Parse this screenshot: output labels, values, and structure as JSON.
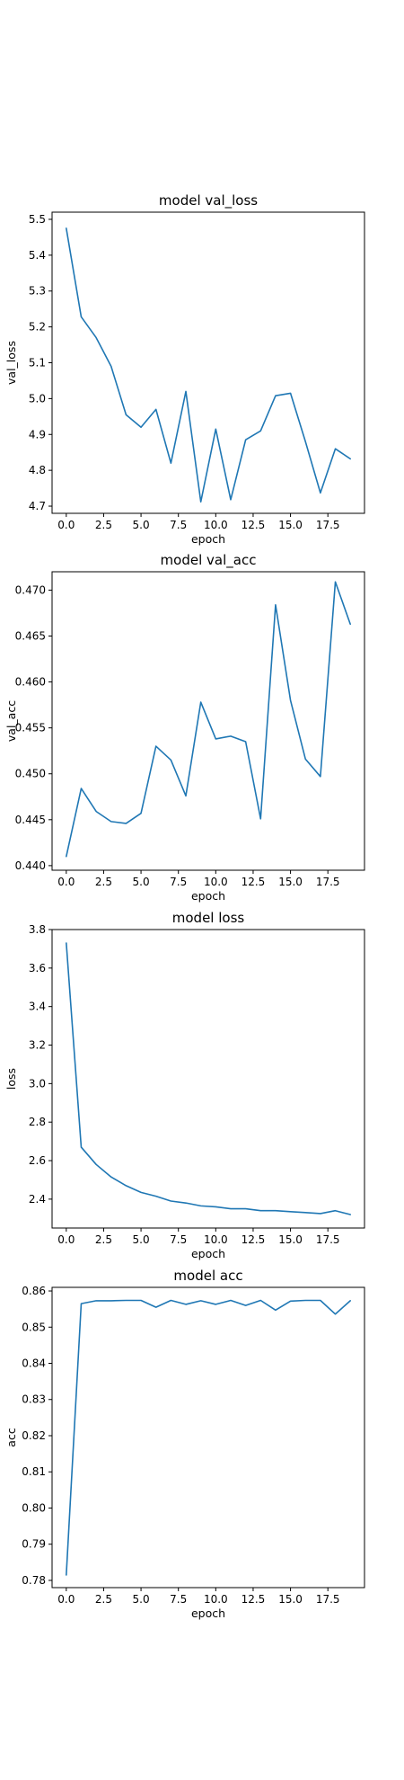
{
  "chart_data": [
    {
      "type": "line",
      "title": "model val_loss",
      "xlabel": "epoch",
      "ylabel": "val_loss",
      "xlim": [
        -0.95,
        19.95
      ],
      "ylim": [
        4.68,
        5.52
      ],
      "xticks": [
        0.0,
        2.5,
        5.0,
        7.5,
        10.0,
        12.5,
        15.0,
        17.5
      ],
      "xtick_labels": [
        "0.0",
        "2.5",
        "5.0",
        "7.5",
        "10.0",
        "12.5",
        "15.0",
        "17.5"
      ],
      "yticks": [
        4.7,
        4.8,
        4.9,
        5.0,
        5.1,
        5.2,
        5.3,
        5.4,
        5.5
      ],
      "ytick_labels": [
        "4.7",
        "4.8",
        "4.9",
        "5.0",
        "5.1",
        "5.2",
        "5.3",
        "5.4",
        "5.5"
      ],
      "grid": false,
      "x": [
        0,
        1,
        2,
        3,
        4,
        5,
        6,
        7,
        8,
        9,
        10,
        11,
        12,
        13,
        14,
        15,
        16,
        17,
        18,
        19
      ],
      "series": [
        {
          "values": [
            5.475,
            5.228,
            5.17,
            5.09,
            4.955,
            4.92,
            4.97,
            4.82,
            5.02,
            4.712,
            4.915,
            4.718,
            4.885,
            4.91,
            5.008,
            5.015,
            4.88,
            4.737,
            4.86,
            4.832
          ],
          "color": "#1f77b4"
        }
      ]
    },
    {
      "type": "line",
      "title": "model val_acc",
      "xlabel": "epoch",
      "ylabel": "val_acc",
      "xlim": [
        -0.95,
        19.95
      ],
      "ylim": [
        0.4395,
        0.472
      ],
      "xticks": [
        0.0,
        2.5,
        5.0,
        7.5,
        10.0,
        12.5,
        15.0,
        17.5
      ],
      "xtick_labels": [
        "0.0",
        "2.5",
        "5.0",
        "7.5",
        "10.0",
        "12.5",
        "15.0",
        "17.5"
      ],
      "yticks": [
        0.44,
        0.445,
        0.45,
        0.455,
        0.46,
        0.465,
        0.47
      ],
      "ytick_labels": [
        "0.440",
        "0.445",
        "0.450",
        "0.455",
        "0.460",
        "0.465",
        "0.470"
      ],
      "grid": false,
      "x": [
        0,
        1,
        2,
        3,
        4,
        5,
        6,
        7,
        8,
        9,
        10,
        11,
        12,
        13,
        14,
        15,
        16,
        17,
        18,
        19
      ],
      "series": [
        {
          "values": [
            0.441,
            0.4484,
            0.4459,
            0.4448,
            0.4446,
            0.4457,
            0.453,
            0.4515,
            0.4476,
            0.4578,
            0.4538,
            0.4541,
            0.4535,
            0.4451,
            0.4684,
            0.458,
            0.4516,
            0.4497,
            0.4709,
            0.4663
          ],
          "color": "#1f77b4"
        }
      ]
    },
    {
      "type": "line",
      "title": "model loss",
      "xlabel": "epoch",
      "ylabel": "loss",
      "xlim": [
        -0.95,
        19.95
      ],
      "ylim": [
        2.25,
        3.8
      ],
      "xticks": [
        0.0,
        2.5,
        5.0,
        7.5,
        10.0,
        12.5,
        15.0,
        17.5
      ],
      "xtick_labels": [
        "0.0",
        "2.5",
        "5.0",
        "7.5",
        "10.0",
        "12.5",
        "15.0",
        "17.5"
      ],
      "yticks": [
        2.4,
        2.6,
        2.8,
        3.0,
        3.2,
        3.4,
        3.6,
        3.8
      ],
      "ytick_labels": [
        "2.4",
        "2.6",
        "2.8",
        "3.0",
        "3.2",
        "3.4",
        "3.6",
        "3.8"
      ],
      "grid": false,
      "x": [
        0,
        1,
        2,
        3,
        4,
        5,
        6,
        7,
        8,
        9,
        10,
        11,
        12,
        13,
        14,
        15,
        16,
        17,
        18,
        19
      ],
      "series": [
        {
          "values": [
            3.73,
            2.67,
            2.58,
            2.515,
            2.47,
            2.435,
            2.415,
            2.39,
            2.38,
            2.365,
            2.36,
            2.35,
            2.35,
            2.34,
            2.34,
            2.335,
            2.33,
            2.325,
            2.34,
            2.32
          ],
          "color": "#1f77b4"
        }
      ]
    },
    {
      "type": "line",
      "title": "model acc",
      "xlabel": "epoch",
      "ylabel": "acc",
      "xlim": [
        -0.95,
        19.95
      ],
      "ylim": [
        0.778,
        0.861
      ],
      "xticks": [
        0.0,
        2.5,
        5.0,
        7.5,
        10.0,
        12.5,
        15.0,
        17.5
      ],
      "xtick_labels": [
        "0.0",
        "2.5",
        "5.0",
        "7.5",
        "10.0",
        "12.5",
        "15.0",
        "17.5"
      ],
      "yticks": [
        0.78,
        0.79,
        0.8,
        0.81,
        0.82,
        0.83,
        0.84,
        0.85,
        0.86
      ],
      "ytick_labels": [
        "0.78",
        "0.79",
        "0.80",
        "0.81",
        "0.82",
        "0.83",
        "0.84",
        "0.85",
        "0.86"
      ],
      "grid": false,
      "x": [
        0,
        1,
        2,
        3,
        4,
        5,
        6,
        7,
        8,
        9,
        10,
        11,
        12,
        13,
        14,
        15,
        16,
        17,
        18,
        19
      ],
      "series": [
        {
          "values": [
            0.7815,
            0.8565,
            0.8573,
            0.8573,
            0.8574,
            0.8574,
            0.8555,
            0.8574,
            0.8563,
            0.8573,
            0.8563,
            0.8574,
            0.856,
            0.8574,
            0.8547,
            0.8572,
            0.8574,
            0.8574,
            0.8536,
            0.8573
          ],
          "color": "#1f77b4"
        }
      ]
    }
  ]
}
